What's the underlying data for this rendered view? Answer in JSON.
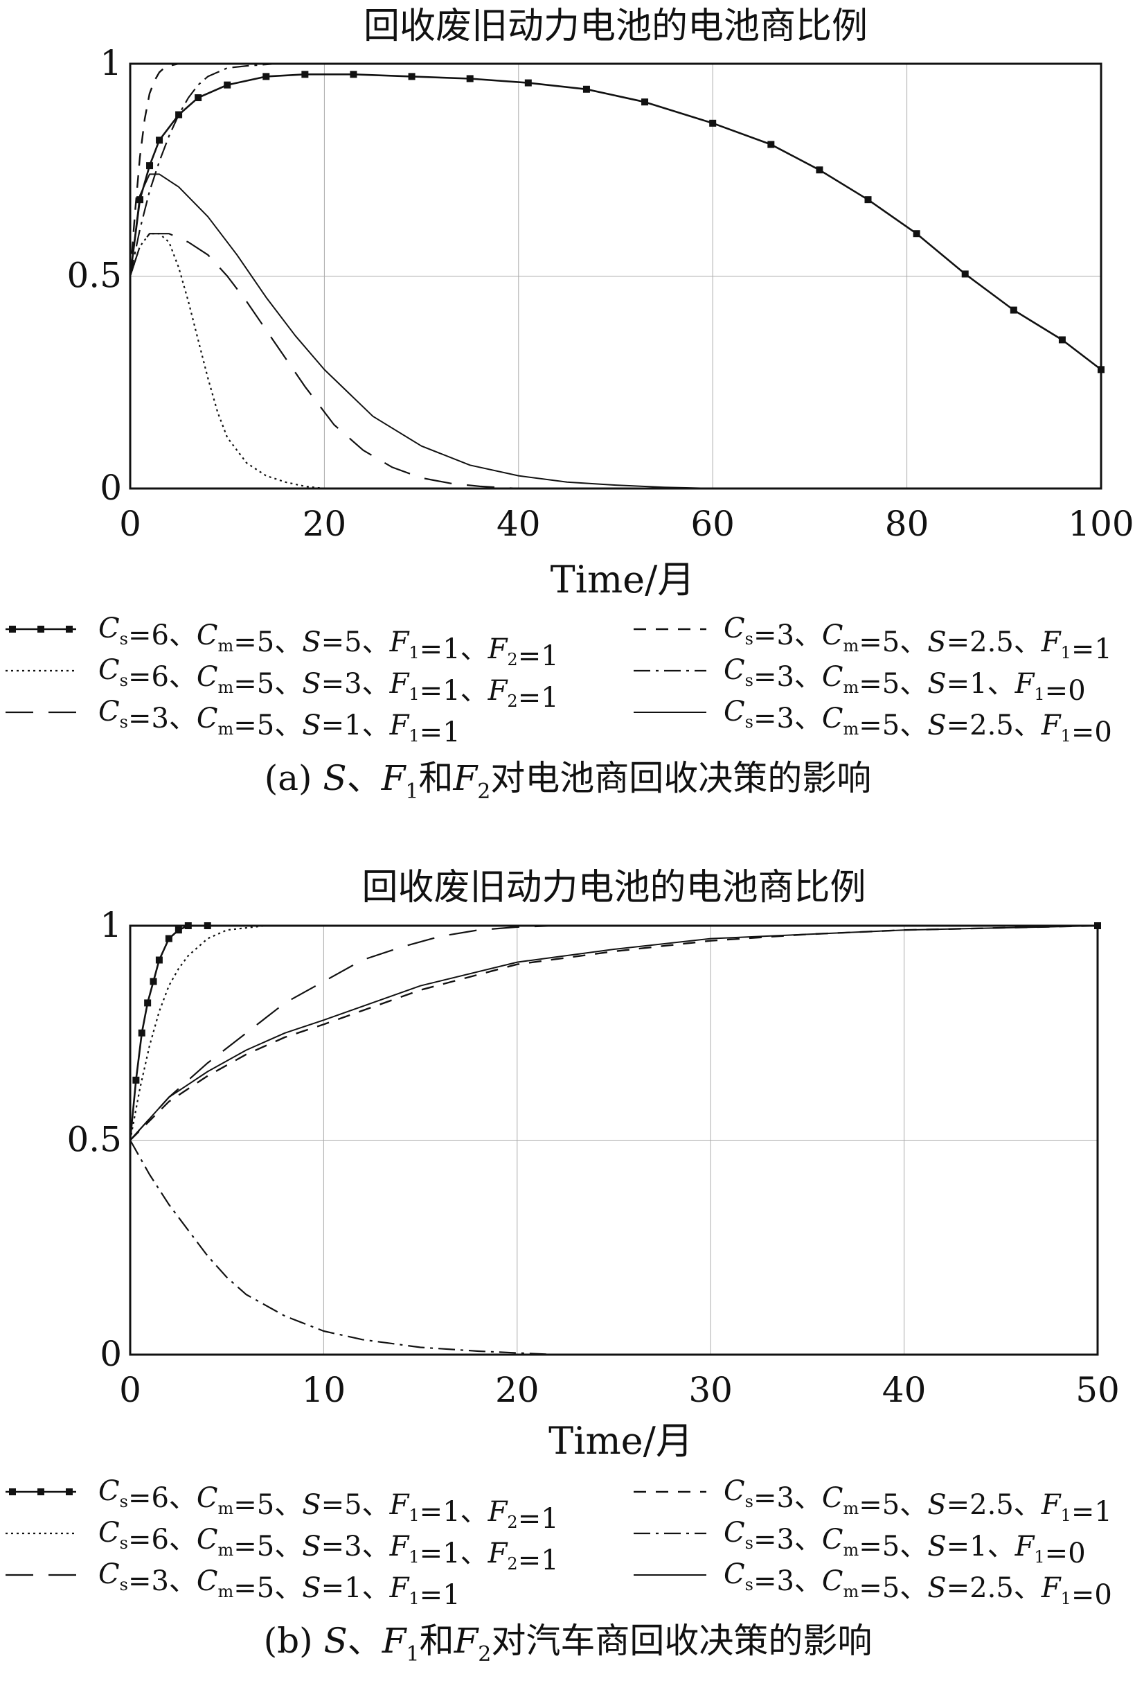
{
  "chart_data": [
    {
      "type": "line",
      "title": "回收废旧动力电池的电池商比例",
      "xlabel": "Time/月",
      "ylabel": "",
      "xlim": [
        0,
        100
      ],
      "ylim": [
        0,
        1
      ],
      "xticks": [
        "0",
        "20",
        "40",
        "60",
        "80",
        "100"
      ],
      "yticks": [
        "0",
        "0.5",
        "1"
      ],
      "grid": true,
      "legend_position": "bottom",
      "caption": {
        "a": "(a) ",
        "s": "S",
        "sep1": "、",
        "f": "F",
        "sub1": "1",
        "and": "和",
        "sub2": "2",
        "rest": "对电池商回收决策的影响"
      },
      "series": [
        {
          "label": "Cs=6、Cm=5、S=5、F1=1、F2=1",
          "style": "dotted-marker",
          "x": [
            0,
            1,
            2,
            3,
            5,
            7,
            10,
            14,
            18,
            23,
            29,
            35,
            41,
            47,
            53,
            60,
            66,
            71,
            76,
            81,
            86,
            91,
            96,
            100
          ],
          "y": [
            0.5,
            0.68,
            0.76,
            0.82,
            0.88,
            0.92,
            0.95,
            0.97,
            0.975,
            0.975,
            0.97,
            0.965,
            0.955,
            0.94,
            0.91,
            0.86,
            0.81,
            0.75,
            0.68,
            0.6,
            0.505,
            0.42,
            0.35,
            0.28
          ]
        },
        {
          "label": "Cs=6、Cm=5、S=3、F1=1、F2=1",
          "style": "dotted",
          "x": [
            0,
            1,
            2,
            3,
            4,
            5,
            6,
            7,
            8,
            9,
            10,
            12,
            14,
            16,
            18,
            20
          ],
          "y": [
            0.5,
            0.57,
            0.6,
            0.6,
            0.58,
            0.52,
            0.44,
            0.35,
            0.26,
            0.18,
            0.12,
            0.06,
            0.03,
            0.015,
            0.005,
            0
          ]
        },
        {
          "label": "Cs=3、Cm=5、S=1、F1=1",
          "style": "longdash",
          "x": [
            0,
            1,
            2,
            4,
            6,
            8,
            10,
            12,
            15,
            18,
            21,
            24,
            27,
            30,
            33,
            36,
            40
          ],
          "y": [
            0.5,
            0.57,
            0.6,
            0.6,
            0.58,
            0.55,
            0.5,
            0.44,
            0.34,
            0.24,
            0.15,
            0.09,
            0.05,
            0.025,
            0.012,
            0.005,
            0
          ]
        },
        {
          "label": "Cs=3、Cm=5、S=2.5、F1=1",
          "style": "dashed",
          "x": [
            0,
            0.5,
            1,
            1.5,
            2,
            2.5,
            3,
            3.5,
            4,
            5,
            6,
            8,
            100
          ],
          "y": [
            0.5,
            0.65,
            0.78,
            0.87,
            0.93,
            0.96,
            0.98,
            0.99,
            0.995,
            1,
            1,
            1,
            1
          ]
        },
        {
          "label": "Cs=3、Cm=5、S=1、F1=0",
          "style": "dashdot",
          "x": [
            0,
            1,
            2,
            3,
            4,
            5,
            6,
            7,
            8,
            9,
            10,
            12,
            15,
            20,
            100
          ],
          "y": [
            0.5,
            0.61,
            0.7,
            0.77,
            0.83,
            0.88,
            0.92,
            0.95,
            0.97,
            0.98,
            0.99,
            0.995,
            1,
            1,
            1
          ]
        },
        {
          "label": "Cs=3、Cm=5、S=2.5、F1=0",
          "style": "solid",
          "x": [
            0,
            1,
            2,
            3,
            5,
            8,
            11,
            14,
            17,
            20,
            25,
            30,
            35,
            40,
            45,
            50,
            55,
            60
          ],
          "y": [
            0.5,
            0.69,
            0.74,
            0.74,
            0.71,
            0.64,
            0.55,
            0.45,
            0.36,
            0.28,
            0.17,
            0.1,
            0.055,
            0.03,
            0.015,
            0.008,
            0.003,
            0
          ]
        }
      ]
    },
    {
      "type": "line",
      "title": "回收废旧动力电池的电池商比例",
      "xlabel": "Time/月",
      "ylabel": "",
      "xlim": [
        0,
        50
      ],
      "ylim": [
        0,
        1
      ],
      "xticks": [
        "0",
        "10",
        "20",
        "30",
        "40",
        "50"
      ],
      "yticks": [
        "0",
        "0.5",
        "1"
      ],
      "grid": true,
      "legend_position": "bottom",
      "caption": {
        "a": "(b) ",
        "s": "S",
        "sep1": "、",
        "f": "F",
        "sub1": "1",
        "and": "和",
        "sub2": "2",
        "rest": "对汽车商回收决策的影响"
      },
      "series": [
        {
          "label": "Cs=6、Cm=5、S=5、F1=1、F2=1",
          "style": "dotted-marker",
          "x": [
            0,
            0.3,
            0.6,
            0.9,
            1.2,
            1.5,
            2,
            2.5,
            3,
            4,
            50
          ],
          "y": [
            0.5,
            0.64,
            0.75,
            0.82,
            0.87,
            0.92,
            0.97,
            0.99,
            1,
            1,
            1
          ]
        },
        {
          "label": "Cs=6、Cm=5、S=3、F1=1、F2=1",
          "style": "dotted",
          "x": [
            0,
            0.5,
            1,
            1.5,
            2,
            2.5,
            3,
            4,
            5,
            6,
            7,
            50
          ],
          "y": [
            0.5,
            0.62,
            0.72,
            0.8,
            0.86,
            0.9,
            0.93,
            0.97,
            0.99,
            0.995,
            1,
            1
          ]
        },
        {
          "label": "Cs=3、Cm=5、S=1、F1=1",
          "style": "longdash",
          "x": [
            0,
            2,
            4,
            6,
            8,
            10,
            12,
            14,
            16,
            18,
            20,
            22,
            50
          ],
          "y": [
            0.5,
            0.6,
            0.68,
            0.75,
            0.82,
            0.87,
            0.92,
            0.95,
            0.975,
            0.99,
            0.997,
            1,
            1
          ]
        },
        {
          "label": "Cs=3、Cm=5、S=2.5、F1=1",
          "style": "dashed",
          "x": [
            0,
            2,
            4,
            6,
            8,
            10,
            15,
            20,
            25,
            30,
            35,
            40,
            45,
            50
          ],
          "y": [
            0.5,
            0.59,
            0.65,
            0.7,
            0.74,
            0.77,
            0.85,
            0.91,
            0.94,
            0.965,
            0.98,
            0.99,
            0.995,
            1
          ]
        },
        {
          "label": "Cs=3、Cm=5、S=1、F1=0",
          "style": "dashdot",
          "x": [
            0,
            1,
            2,
            3,
            4,
            5,
            6,
            8,
            10,
            12,
            15,
            18,
            20,
            22,
            50
          ],
          "y": [
            0.5,
            0.42,
            0.35,
            0.29,
            0.23,
            0.18,
            0.14,
            0.09,
            0.055,
            0.035,
            0.017,
            0.008,
            0.004,
            0,
            0
          ]
        },
        {
          "label": "Cs=3、Cm=5、S=2.5、F1=0",
          "style": "solid",
          "x": [
            0,
            2,
            4,
            6,
            8,
            10,
            15,
            20,
            25,
            30,
            35,
            40,
            45,
            50
          ],
          "y": [
            0.5,
            0.6,
            0.66,
            0.71,
            0.75,
            0.78,
            0.86,
            0.915,
            0.945,
            0.97,
            0.98,
            0.99,
            0.995,
            1
          ]
        }
      ]
    }
  ],
  "legend_items": [
    {
      "cs": "6",
      "cm": "5",
      "s": "5",
      "f1": "1",
      "f2": "1",
      "style": "dotted-marker"
    },
    {
      "cs": "6",
      "cm": "5",
      "s": "3",
      "f1": "1",
      "f2": "1",
      "style": "dotted"
    },
    {
      "cs": "3",
      "cm": "5",
      "s": "1",
      "f1": "1",
      "style": "longdash"
    },
    {
      "cs": "3",
      "cm": "5",
      "s": "2.5",
      "f1": "1",
      "style": "dashed"
    },
    {
      "cs": "3",
      "cm": "5",
      "s": "1",
      "f1": "0",
      "style": "dashdot"
    },
    {
      "cs": "3",
      "cm": "5",
      "s": "2.5",
      "f1": "0",
      "style": "solid"
    }
  ]
}
